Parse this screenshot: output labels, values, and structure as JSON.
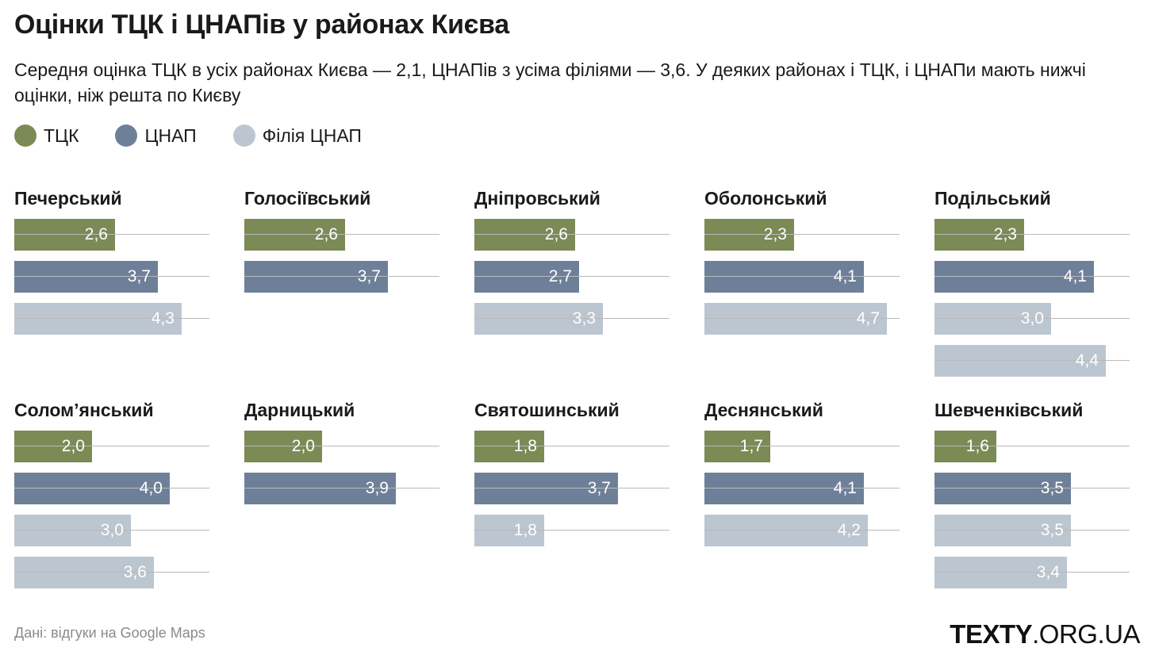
{
  "title": "Оцінки ТЦК і ЦНАПів у районах Києва",
  "subtitle": "Середня оцінка ТЦК в усіх районах Києва — 2,1, ЦНАПів з усіма філіями — 3,6. У деяких районах і ТЦК, і ЦНАПи мають нижчі оцінки, ніж решта по Києву",
  "legend": [
    {
      "label": "ТЦК",
      "color": "#7c8a55"
    },
    {
      "label": "ЦНАП",
      "color": "#6e8099"
    },
    {
      "label": "Філія ЦНАП",
      "color": "#bcc6d0"
    }
  ],
  "source": "Дані: відгуки на Google Maps",
  "brand": {
    "bold": "TEXTY",
    "light": ".ORG.UA"
  },
  "chart_data": {
    "type": "bar",
    "orientation": "horizontal",
    "xlim": [
      0,
      5
    ],
    "colors": {
      "tck": "#7c8a55",
      "cnap": "#6e8099",
      "filia": "#bcc6d0"
    },
    "panels": [
      {
        "district": "Печерський",
        "bars": [
          {
            "kind": "tck",
            "value": 2.6,
            "label": "2,6"
          },
          {
            "kind": "cnap",
            "value": 3.7,
            "label": "3,7"
          },
          {
            "kind": "filia",
            "value": 4.3,
            "label": "4,3"
          }
        ]
      },
      {
        "district": "Голосіївський",
        "bars": [
          {
            "kind": "tck",
            "value": 2.6,
            "label": "2,6"
          },
          {
            "kind": "cnap",
            "value": 3.7,
            "label": "3,7"
          }
        ]
      },
      {
        "district": "Дніпровський",
        "bars": [
          {
            "kind": "tck",
            "value": 2.6,
            "label": "2,6"
          },
          {
            "kind": "cnap",
            "value": 2.7,
            "label": "2,7"
          },
          {
            "kind": "filia",
            "value": 3.3,
            "label": "3,3"
          }
        ]
      },
      {
        "district": "Оболонський",
        "bars": [
          {
            "kind": "tck",
            "value": 2.3,
            "label": "2,3"
          },
          {
            "kind": "cnap",
            "value": 4.1,
            "label": "4,1"
          },
          {
            "kind": "filia",
            "value": 4.7,
            "label": "4,7"
          }
        ]
      },
      {
        "district": "Подільський",
        "bars": [
          {
            "kind": "tck",
            "value": 2.3,
            "label": "2,3"
          },
          {
            "kind": "cnap",
            "value": 4.1,
            "label": "4,1"
          },
          {
            "kind": "filia",
            "value": 3.0,
            "label": "3,0"
          },
          {
            "kind": "filia",
            "value": 4.4,
            "label": "4,4"
          }
        ]
      },
      {
        "district": "Солом’янський",
        "bars": [
          {
            "kind": "tck",
            "value": 2.0,
            "label": "2,0"
          },
          {
            "kind": "cnap",
            "value": 4.0,
            "label": "4,0"
          },
          {
            "kind": "filia",
            "value": 3.0,
            "label": "3,0"
          },
          {
            "kind": "filia",
            "value": 3.6,
            "label": "3,6"
          }
        ]
      },
      {
        "district": "Дарницький",
        "bars": [
          {
            "kind": "tck",
            "value": 2.0,
            "label": "2,0"
          },
          {
            "kind": "cnap",
            "value": 3.9,
            "label": "3,9"
          }
        ]
      },
      {
        "district": "Святошинський",
        "bars": [
          {
            "kind": "tck",
            "value": 1.8,
            "label": "1,8"
          },
          {
            "kind": "cnap",
            "value": 3.7,
            "label": "3,7"
          },
          {
            "kind": "filia",
            "value": 1.8,
            "label": "1,8"
          }
        ]
      },
      {
        "district": "Деснянський",
        "bars": [
          {
            "kind": "tck",
            "value": 1.7,
            "label": "1,7"
          },
          {
            "kind": "cnap",
            "value": 4.1,
            "label": "4,1"
          },
          {
            "kind": "filia",
            "value": 4.2,
            "label": "4,2"
          }
        ]
      },
      {
        "district": "Шевченківський",
        "bars": [
          {
            "kind": "tck",
            "value": 1.6,
            "label": "1,6"
          },
          {
            "kind": "cnap",
            "value": 3.5,
            "label": "3,5"
          },
          {
            "kind": "filia",
            "value": 3.5,
            "label": "3,5"
          },
          {
            "kind": "filia",
            "value": 3.4,
            "label": "3,4"
          }
        ]
      }
    ]
  }
}
